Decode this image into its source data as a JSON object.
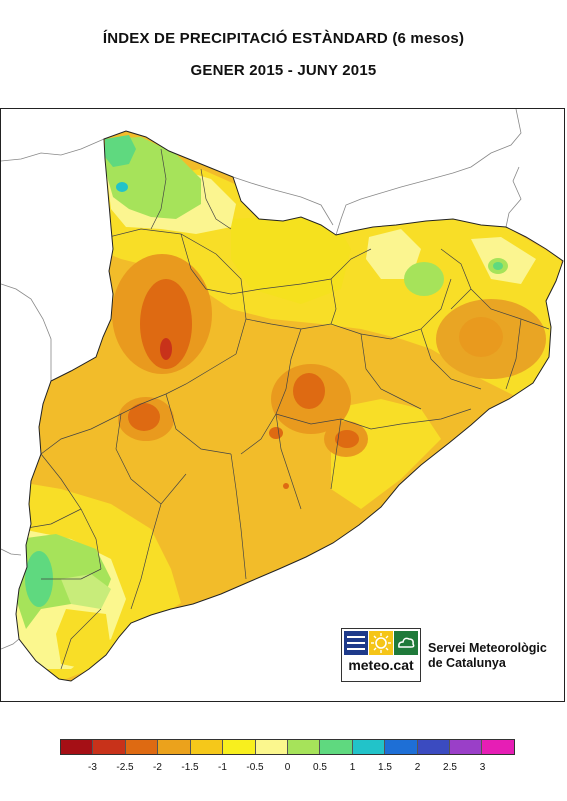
{
  "title": {
    "line1": "ÍNDEX DE PRECIPITACIÓ ESTÀNDARD (6 mesos)",
    "line2": "GENER 2015 - JUNY 2015"
  },
  "logo": {
    "text": "meteo.cat",
    "org_line1": "Servei Meteorològic",
    "org_line2": "de Catalunya",
    "colors": {
      "blue": "#1e3a8a",
      "yellow": "#f5c518",
      "green": "#1f7a3a"
    }
  },
  "legend": {
    "colors": [
      "#a50f15",
      "#c8321a",
      "#de6a12",
      "#eba21c",
      "#f5c81a",
      "#f8ef1e",
      "#fbf78e",
      "#a6e35a",
      "#5fd97f",
      "#22c3c9",
      "#1e6fd6",
      "#3b4bc0",
      "#9a3fc8",
      "#e61eb5"
    ],
    "labels": [
      "-3",
      "-2.5",
      "-2",
      "-1.5",
      "-1",
      "-0.5",
      "0",
      "0.5",
      "1",
      "1.5",
      "2",
      "2.5",
      "3"
    ]
  }
}
